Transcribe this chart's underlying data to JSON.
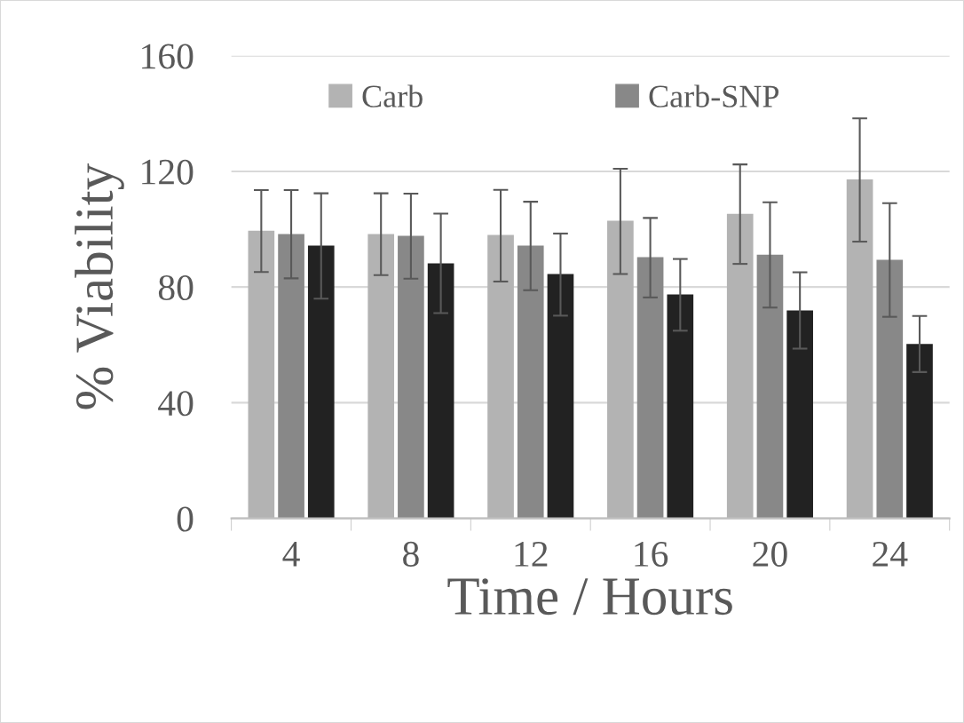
{
  "chart_data": {
    "type": "bar",
    "xlabel": "Time / Hours",
    "ylabel": "% Viability",
    "categories": [
      "4",
      "8",
      "12",
      "16",
      "20",
      "24"
    ],
    "ylim": [
      0,
      160
    ],
    "yticks": [
      0,
      40,
      80,
      120,
      160
    ],
    "grid": "y",
    "legend": "top",
    "series": [
      {
        "name": "Carb",
        "color": "#b3b3b3",
        "values": [
          99.5,
          98.3,
          98.0,
          102.9,
          105.3,
          117.2
        ],
        "errors": [
          [
            85.2,
            113.5
          ],
          [
            84.1,
            112.4
          ],
          [
            81.9,
            113.6
          ],
          [
            84.5,
            120.9
          ],
          [
            88.0,
            122.4
          ],
          [
            95.7,
            138.3
          ]
        ]
      },
      {
        "name": "Carb-SNP",
        "color": "#888888",
        "values": [
          98.3,
          97.7,
          94.3,
          90.3,
          91.2,
          89.4
        ],
        "errors": [
          [
            83.0,
            113.5
          ],
          [
            82.9,
            112.3
          ],
          [
            78.9,
            109.5
          ],
          [
            76.4,
            103.9
          ],
          [
            72.9,
            109.3
          ],
          [
            69.7,
            109.0
          ]
        ]
      },
      {
        "color": "#222222",
        "values": [
          94.3,
          88.2,
          84.5,
          77.4,
          71.9,
          60.3
        ],
        "errors": [
          [
            76.0,
            112.4
          ],
          [
            71.0,
            105.4
          ],
          [
            70.1,
            98.5
          ],
          [
            64.9,
            89.7
          ],
          [
            58.7,
            85.1
          ],
          [
            50.6,
            70.0
          ]
        ]
      }
    ]
  }
}
